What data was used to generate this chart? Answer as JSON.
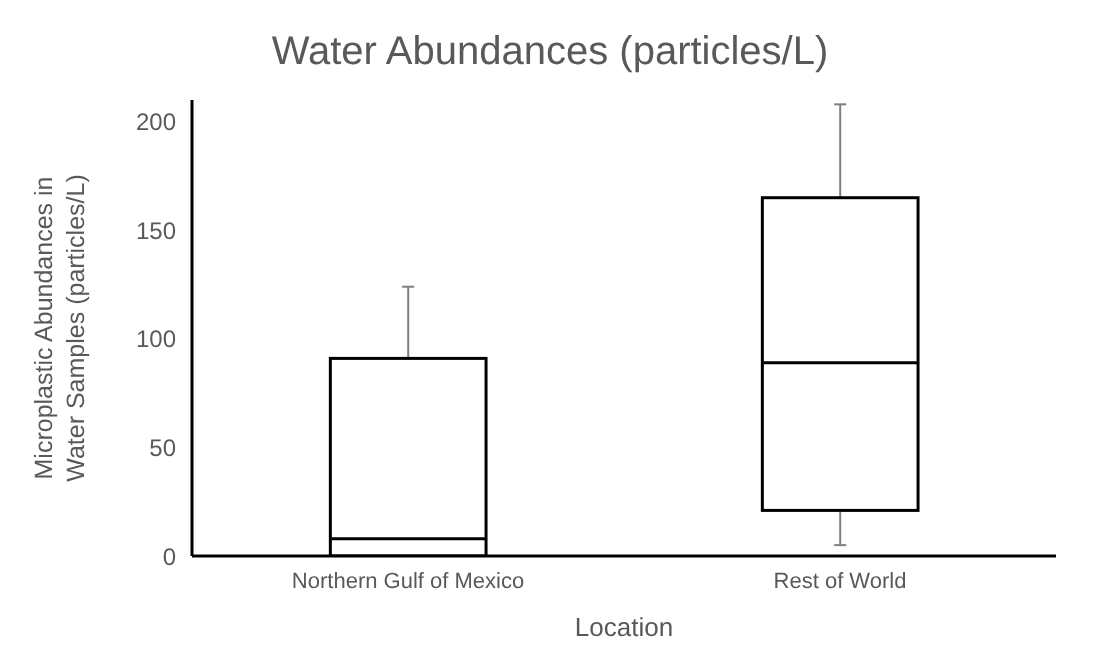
{
  "chart_data": {
    "type": "box",
    "title": "Water Abundances (particles/L)",
    "xlabel": "Location",
    "ylabel": "Microplastic Abundances in Water Samples (particles/L)",
    "categories": [
      "Northern Gulf of Mexico",
      "Rest of World"
    ],
    "boxes": [
      {
        "low": 0,
        "q1": 0,
        "median": 8,
        "q3": 91,
        "high": 124
      },
      {
        "low": 5,
        "q1": 21,
        "median": 89,
        "q3": 165,
        "high": 208
      }
    ],
    "color": "#000000",
    "ylim": [
      0,
      210
    ],
    "yticks": [
      0,
      50,
      100,
      150,
      200
    ],
    "grid": false,
    "legend": false
  }
}
